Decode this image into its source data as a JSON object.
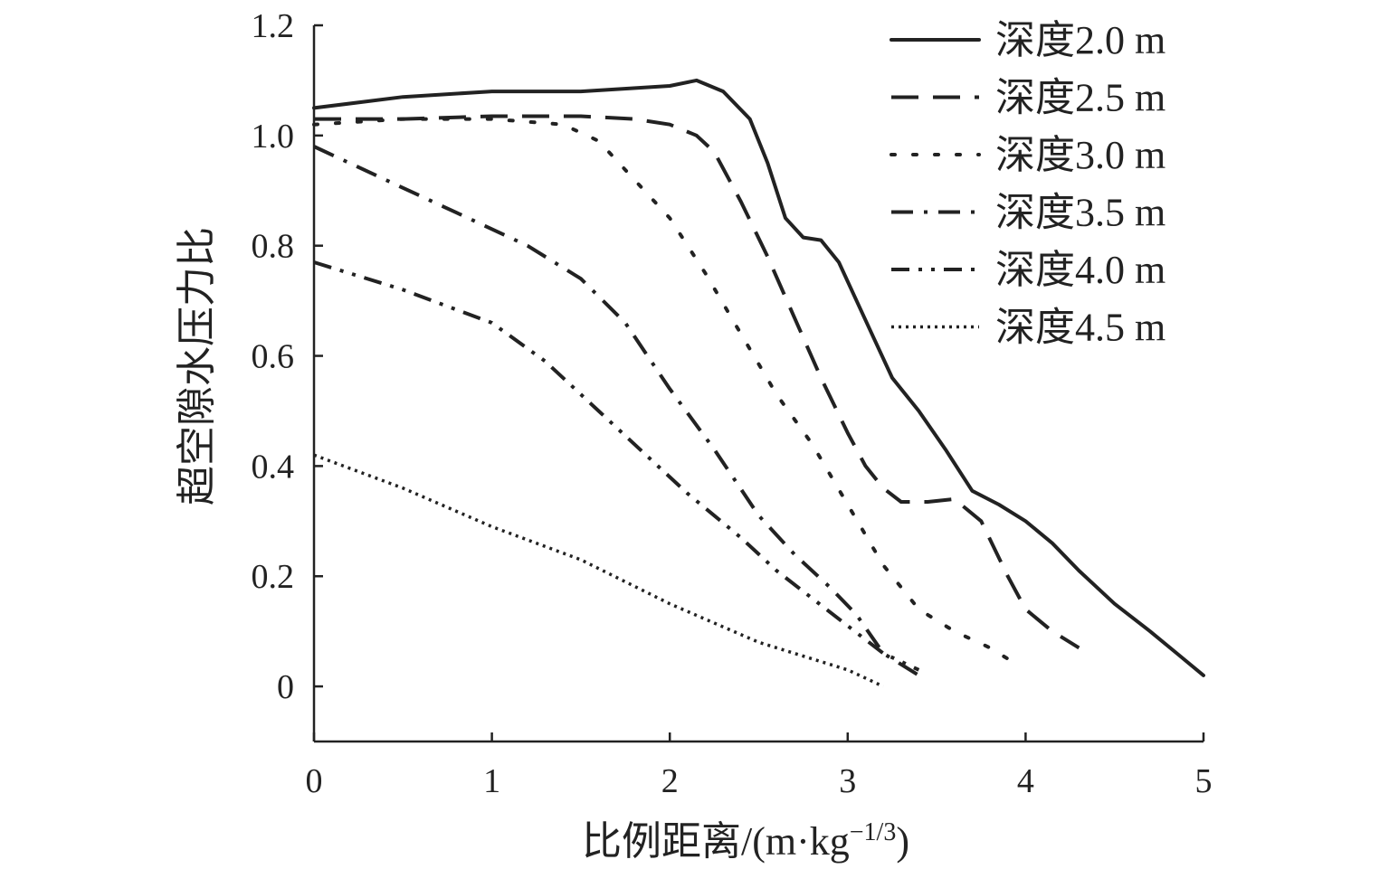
{
  "chart_data": {
    "type": "line",
    "title": "",
    "xlabel": "比例距离/(m·kg",
    "xlabel_sup": "−1/3",
    "xlabel_close": ")",
    "ylabel": "超空隙水压力比",
    "xlim": [
      0,
      5
    ],
    "ylim": [
      -0.1,
      1.2
    ],
    "xticks": [
      0,
      1,
      2,
      3,
      4,
      5
    ],
    "xtick_labels": [
      "0",
      "1",
      "2",
      "3",
      "4",
      "5"
    ],
    "yticks": [
      0,
      0.2,
      0.4,
      0.6,
      0.8,
      1.0,
      1.2
    ],
    "ytick_labels": [
      "0",
      "0.2",
      "0.4",
      "0.6",
      "0.8",
      "1.0",
      "1.2"
    ],
    "grid": false,
    "legend_position": "top-right",
    "series": [
      {
        "name": "深度2.0 m",
        "dash": "solid",
        "x": [
          0,
          0.5,
          1.0,
          1.5,
          2.0,
          2.15,
          2.3,
          2.45,
          2.55,
          2.65,
          2.75,
          2.85,
          2.95,
          3.05,
          3.15,
          3.25,
          3.4,
          3.55,
          3.7,
          3.85,
          4.0,
          4.15,
          4.3,
          4.5,
          4.7,
          4.85,
          5.0
        ],
        "y": [
          1.05,
          1.07,
          1.08,
          1.08,
          1.09,
          1.1,
          1.08,
          1.03,
          0.95,
          0.85,
          0.815,
          0.81,
          0.77,
          0.7,
          0.63,
          0.56,
          0.5,
          0.43,
          0.355,
          0.33,
          0.3,
          0.26,
          0.21,
          0.15,
          0.1,
          0.06,
          0.02
        ]
      },
      {
        "name": "深度2.5 m",
        "dash": "long-dash",
        "x": [
          0,
          0.5,
          1.0,
          1.5,
          1.8,
          2.0,
          2.15,
          2.25,
          2.4,
          2.55,
          2.7,
          2.85,
          3.0,
          3.1,
          3.2,
          3.3,
          3.45,
          3.6,
          3.75,
          3.9,
          4.0,
          4.15,
          4.3
        ],
        "y": [
          1.03,
          1.03,
          1.035,
          1.035,
          1.03,
          1.02,
          1.0,
          0.97,
          0.88,
          0.78,
          0.67,
          0.56,
          0.46,
          0.4,
          0.36,
          0.335,
          0.335,
          0.34,
          0.3,
          0.2,
          0.14,
          0.1,
          0.07
        ]
      },
      {
        "name": "深度3.0 m",
        "dash": "dot",
        "x": [
          0,
          0.5,
          1.0,
          1.4,
          1.6,
          1.8,
          2.0,
          2.2,
          2.4,
          2.6,
          2.8,
          3.0,
          3.2,
          3.4,
          3.6,
          3.8,
          3.9
        ],
        "y": [
          1.02,
          1.03,
          1.03,
          1.02,
          0.99,
          0.92,
          0.85,
          0.75,
          0.64,
          0.53,
          0.44,
          0.33,
          0.22,
          0.14,
          0.1,
          0.07,
          0.05
        ]
      },
      {
        "name": "深度3.5 m",
        "dash": "dash-dot",
        "x": [
          0,
          0.4,
          0.8,
          1.2,
          1.5,
          1.75,
          2.0,
          2.25,
          2.5,
          2.7,
          2.9,
          3.05,
          3.2,
          3.3,
          3.4
        ],
        "y": [
          0.98,
          0.92,
          0.86,
          0.8,
          0.74,
          0.66,
          0.54,
          0.43,
          0.31,
          0.24,
          0.18,
          0.13,
          0.06,
          0.04,
          0.02
        ]
      },
      {
        "name": "深度4.0 m",
        "dash": "dash-dot-dot",
        "x": [
          0,
          0.5,
          1.0,
          1.3,
          1.6,
          1.9,
          2.1,
          2.4,
          2.6,
          2.8,
          3.0,
          3.2,
          3.4
        ],
        "y": [
          0.77,
          0.72,
          0.66,
          0.59,
          0.5,
          0.41,
          0.35,
          0.27,
          0.21,
          0.16,
          0.11,
          0.06,
          0.03
        ]
      },
      {
        "name": "深度4.5 m",
        "dash": "fine-dot",
        "x": [
          0,
          0.5,
          1.0,
          1.5,
          2.0,
          2.5,
          3.0,
          3.2
        ],
        "y": [
          0.42,
          0.36,
          0.29,
          0.23,
          0.15,
          0.08,
          0.03,
          0.0
        ]
      }
    ]
  },
  "colors": {
    "line": "#222222",
    "background": "#ffffff"
  }
}
